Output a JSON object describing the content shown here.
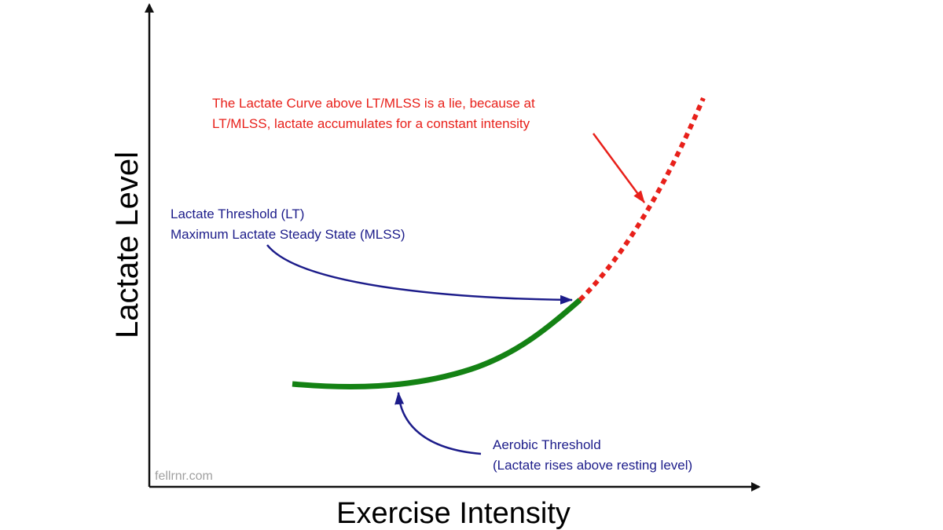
{
  "axes": {
    "x_label": "Exercise Intensity",
    "y_label": "Lactate Level"
  },
  "watermark": "fellrnr.com",
  "annotations": {
    "red_note": {
      "line1": "The Lactate Curve above LT/MLSS is a lie, because at",
      "line2": "LT/MLSS, lactate accumulates for a constant intensity",
      "color": "#e8201a"
    },
    "lt_note": {
      "line1": "Lactate Threshold (LT)",
      "line2": "Maximum Lactate Steady State (MLSS)",
      "color": "#1c1c8a"
    },
    "aerobic_note": {
      "line1": "Aerobic Threshold",
      "line2": "(Lactate rises above resting level)",
      "color": "#1c1c8a"
    }
  },
  "curve": {
    "solid_color": "#148214",
    "dashed_color": "#e8201a"
  },
  "axis_color": "#111111"
}
